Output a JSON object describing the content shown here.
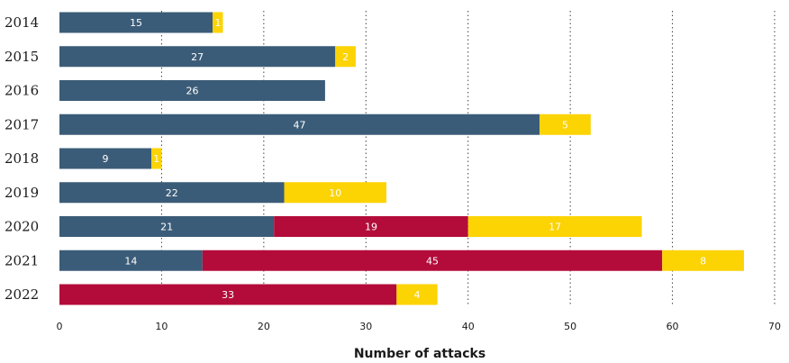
{
  "chart_data": {
    "type": "bar",
    "orientation": "horizontal",
    "stacked": true,
    "categories": [
      "2014",
      "2015",
      "2016",
      "2017",
      "2018",
      "2019",
      "2020",
      "2021",
      "2022"
    ],
    "series": [
      {
        "color": "#3b5c78",
        "values": [
          15,
          27,
          26,
          47,
          9,
          22,
          21,
          14,
          0
        ]
      },
      {
        "color": "#b30c3a",
        "values": [
          0,
          0,
          0,
          0,
          0,
          0,
          19,
          45,
          33
        ]
      },
      {
        "color": "#fcd303",
        "values": [
          1,
          2,
          0,
          5,
          1,
          10,
          17,
          8,
          4
        ]
      }
    ],
    "xlabel": "Number of attacks",
    "xlim": [
      0,
      70
    ],
    "xticks": [
      0,
      10,
      20,
      30,
      40,
      50,
      60,
      70
    ],
    "grid": "vertical dotted",
    "legend": "none"
  }
}
